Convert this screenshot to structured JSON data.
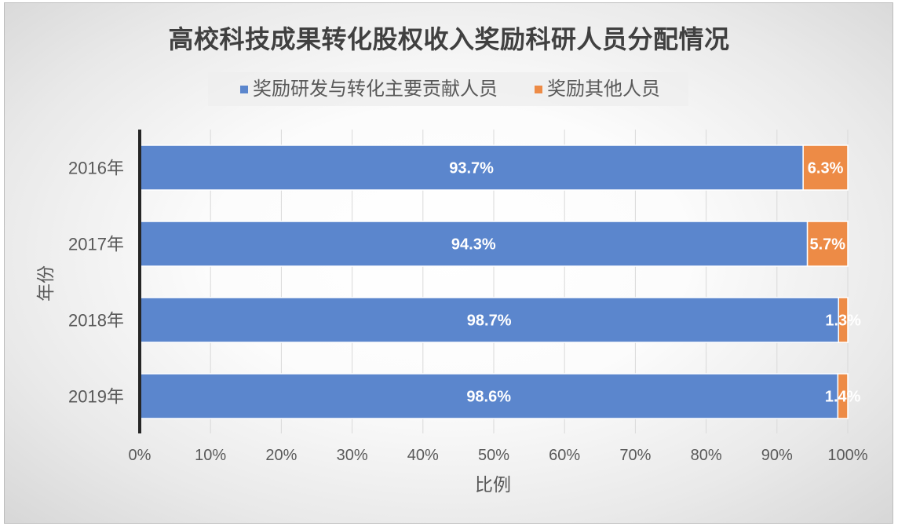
{
  "chart_data": {
    "type": "bar",
    "orientation": "horizontal",
    "stacked": true,
    "title": "高校科技成果转化股权收入奖励科研人员分配情况",
    "xlabel": "比例",
    "ylabel": "年份",
    "categories": [
      "2016年",
      "2017年",
      "2018年",
      "2019年"
    ],
    "series": [
      {
        "name": "奖励研发与转化主要贡献人员",
        "color": "#5b86cd",
        "values": [
          93.7,
          94.3,
          98.7,
          98.6
        ],
        "labels": [
          "93.7%",
          "94.3%",
          "98.7%",
          "98.6%"
        ]
      },
      {
        "name": "奖励其他人员",
        "color": "#ed8b46",
        "values": [
          6.3,
          5.7,
          1.3,
          1.4
        ],
        "labels": [
          "6.3%",
          "5.7%",
          "1.3%",
          "1.4%"
        ]
      }
    ],
    "xlim": [
      0,
      100
    ],
    "xticks": [
      0,
      10,
      20,
      30,
      40,
      50,
      60,
      70,
      80,
      90,
      100
    ],
    "xtick_labels": [
      "0%",
      "10%",
      "20%",
      "30%",
      "40%",
      "50%",
      "60%",
      "70%",
      "80%",
      "90%",
      "100%"
    ],
    "grid": true,
    "legend": "top"
  }
}
